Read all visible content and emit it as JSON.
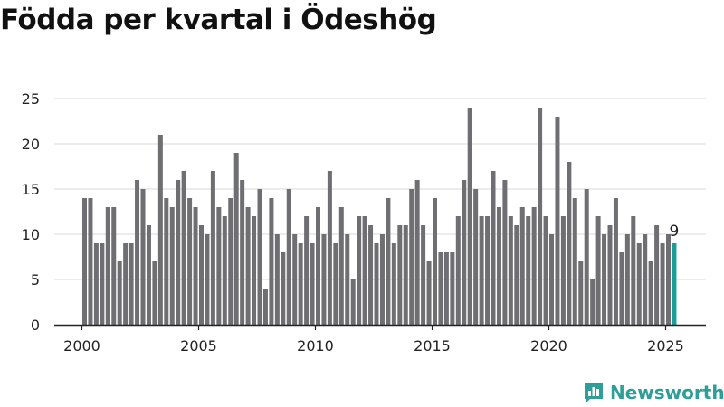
{
  "title": "Födda per kvartal i Ödeshög",
  "brand": {
    "name": "Newsworthy",
    "icon": "newsworthy-logo-icon",
    "color": "#2e9e99"
  },
  "colors": {
    "bar": "#6f6e72",
    "highlight": "#1b9e98",
    "axis": "#222222",
    "grid": "#d9d9d9"
  },
  "chart_data": {
    "type": "bar",
    "title": "Födda per kvartal i Ödeshög",
    "xlabel": "",
    "ylabel": "",
    "ylim": [
      0,
      25
    ],
    "yticks": [
      0,
      5,
      10,
      15,
      20,
      25
    ],
    "xticks": [
      2000,
      2005,
      2010,
      2015,
      2020,
      2025
    ],
    "grid": true,
    "start_year": 2000,
    "values": [
      14,
      14,
      9,
      9,
      13,
      13,
      7,
      9,
      9,
      16,
      15,
      11,
      7,
      21,
      14,
      13,
      16,
      17,
      14,
      13,
      11,
      10,
      17,
      13,
      12,
      14,
      19,
      16,
      13,
      12,
      15,
      4,
      14,
      10,
      8,
      15,
      10,
      9,
      12,
      9,
      13,
      10,
      17,
      9,
      13,
      10,
      5,
      12,
      12,
      11,
      9,
      10,
      14,
      9,
      11,
      11,
      15,
      16,
      11,
      7,
      14,
      8,
      8,
      8,
      12,
      16,
      24,
      15,
      12,
      12,
      17,
      13,
      16,
      12,
      11,
      13,
      12,
      13,
      24,
      12,
      10,
      23,
      12,
      18,
      14,
      7,
      15,
      5,
      12,
      10,
      11,
      14,
      8,
      10,
      12,
      9,
      10,
      7,
      11,
      9,
      10,
      9
    ],
    "highlight_label": "9"
  }
}
